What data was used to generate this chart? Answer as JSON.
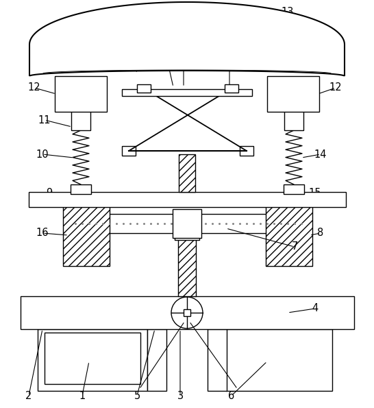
{
  "background_color": "#ffffff",
  "line_color": "#000000",
  "label_color": "#000000",
  "figsize": [
    5.46,
    5.95
  ],
  "dpi": 100
}
